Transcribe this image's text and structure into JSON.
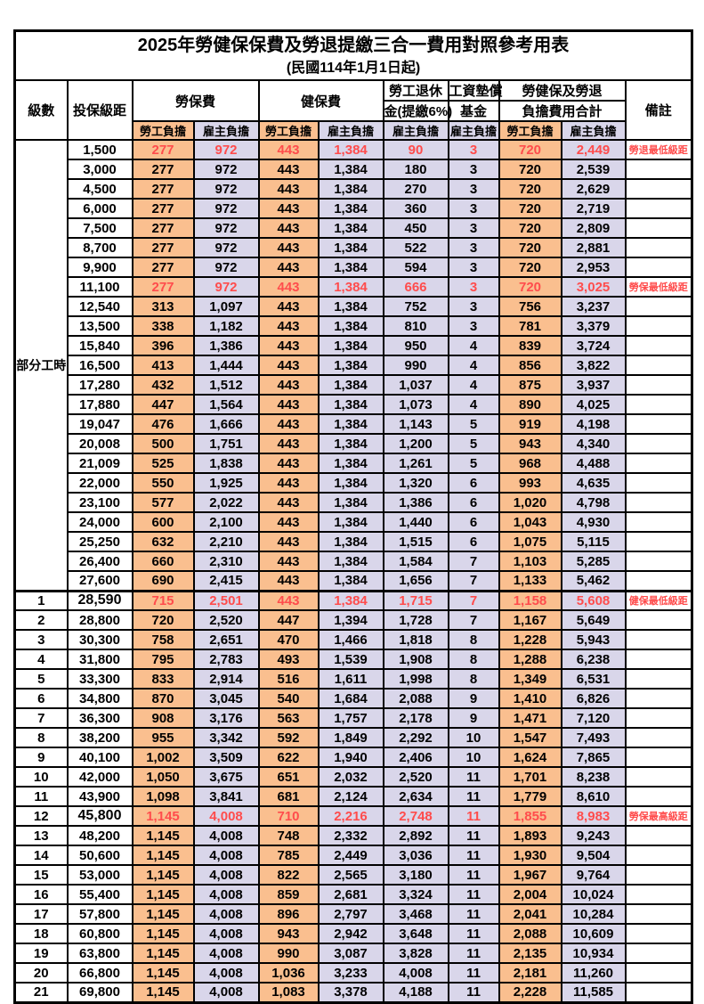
{
  "title": "2025年勞健保保費及勞退提繳三合一費用對照參考用表",
  "subtitle": "(民國114年1月1日起)",
  "part_time_label": "部分工時",
  "colors": {
    "employee_col_bg": "#FABF8F",
    "employer_col_bg": "#D9D6EA",
    "highlight_text": "#FF4C4C",
    "border": "#000000"
  },
  "header": {
    "level": "級數",
    "bracket": "投保級距",
    "labor_insurance": "勞保費",
    "health_insurance": "健保費",
    "pension_line1": "勞工退休",
    "pension_line2": "金(提繳6%)",
    "wage_fund_line1": "工資墊償",
    "wage_fund_line2": "基金",
    "total_line1": "勞健保及勞退",
    "total_line2": "負擔費用合計",
    "remark": "備註",
    "employee": "勞工負擔",
    "employer": "雇主負擔"
  },
  "rows": [
    {
      "red": true,
      "bold": false,
      "thick": false,
      "cells": [
        "",
        "1,500",
        "277",
        "972",
        "443",
        "1,384",
        "90",
        "3",
        "720",
        "2,449",
        "勞退最低級距"
      ]
    },
    {
      "red": false,
      "bold": false,
      "thick": false,
      "cells": [
        "",
        "3,000",
        "277",
        "972",
        "443",
        "1,384",
        "180",
        "3",
        "720",
        "2,539",
        ""
      ]
    },
    {
      "red": false,
      "bold": false,
      "thick": false,
      "cells": [
        "",
        "4,500",
        "277",
        "972",
        "443",
        "1,384",
        "270",
        "3",
        "720",
        "2,629",
        ""
      ]
    },
    {
      "red": false,
      "bold": false,
      "thick": false,
      "cells": [
        "",
        "6,000",
        "277",
        "972",
        "443",
        "1,384",
        "360",
        "3",
        "720",
        "2,719",
        ""
      ]
    },
    {
      "red": false,
      "bold": false,
      "thick": false,
      "cells": [
        "",
        "7,500",
        "277",
        "972",
        "443",
        "1,384",
        "450",
        "3",
        "720",
        "2,809",
        ""
      ]
    },
    {
      "red": false,
      "bold": false,
      "thick": false,
      "cells": [
        "",
        "8,700",
        "277",
        "972",
        "443",
        "1,384",
        "522",
        "3",
        "720",
        "2,881",
        ""
      ]
    },
    {
      "red": false,
      "bold": false,
      "thick": false,
      "cells": [
        "",
        "9,900",
        "277",
        "972",
        "443",
        "1,384",
        "594",
        "3",
        "720",
        "2,953",
        ""
      ]
    },
    {
      "red": true,
      "bold": false,
      "thick": false,
      "cells": [
        "",
        "11,100",
        "277",
        "972",
        "443",
        "1,384",
        "666",
        "3",
        "720",
        "3,025",
        "勞保最低級距"
      ]
    },
    {
      "red": false,
      "bold": false,
      "thick": false,
      "cells": [
        "",
        "12,540",
        "313",
        "1,097",
        "443",
        "1,384",
        "752",
        "3",
        "756",
        "3,237",
        ""
      ]
    },
    {
      "red": false,
      "bold": false,
      "thick": false,
      "cells": [
        "",
        "13,500",
        "338",
        "1,182",
        "443",
        "1,384",
        "810",
        "3",
        "781",
        "3,379",
        ""
      ]
    },
    {
      "red": false,
      "bold": false,
      "thick": false,
      "cells": [
        "",
        "15,840",
        "396",
        "1,386",
        "443",
        "1,384",
        "950",
        "4",
        "839",
        "3,724",
        ""
      ]
    },
    {
      "red": false,
      "bold": false,
      "thick": false,
      "cells": [
        "",
        "16,500",
        "413",
        "1,444",
        "443",
        "1,384",
        "990",
        "4",
        "856",
        "3,822",
        ""
      ]
    },
    {
      "red": false,
      "bold": false,
      "thick": false,
      "cells": [
        "",
        "17,280",
        "432",
        "1,512",
        "443",
        "1,384",
        "1,037",
        "4",
        "875",
        "3,937",
        ""
      ]
    },
    {
      "red": false,
      "bold": false,
      "thick": false,
      "cells": [
        "",
        "17,880",
        "447",
        "1,564",
        "443",
        "1,384",
        "1,073",
        "4",
        "890",
        "4,025",
        ""
      ]
    },
    {
      "red": false,
      "bold": false,
      "thick": false,
      "cells": [
        "",
        "19,047",
        "476",
        "1,666",
        "443",
        "1,384",
        "1,143",
        "5",
        "919",
        "4,198",
        ""
      ]
    },
    {
      "red": false,
      "bold": false,
      "thick": false,
      "cells": [
        "",
        "20,008",
        "500",
        "1,751",
        "443",
        "1,384",
        "1,200",
        "5",
        "943",
        "4,340",
        ""
      ]
    },
    {
      "red": false,
      "bold": false,
      "thick": false,
      "cells": [
        "",
        "21,009",
        "525",
        "1,838",
        "443",
        "1,384",
        "1,261",
        "5",
        "968",
        "4,488",
        ""
      ]
    },
    {
      "red": false,
      "bold": false,
      "thick": false,
      "cells": [
        "",
        "22,000",
        "550",
        "1,925",
        "443",
        "1,384",
        "1,320",
        "6",
        "993",
        "4,635",
        ""
      ]
    },
    {
      "red": false,
      "bold": false,
      "thick": false,
      "cells": [
        "",
        "23,100",
        "577",
        "2,022",
        "443",
        "1,384",
        "1,386",
        "6",
        "1,020",
        "4,798",
        ""
      ]
    },
    {
      "red": false,
      "bold": false,
      "thick": false,
      "cells": [
        "",
        "24,000",
        "600",
        "2,100",
        "443",
        "1,384",
        "1,440",
        "6",
        "1,043",
        "4,930",
        ""
      ]
    },
    {
      "red": false,
      "bold": false,
      "thick": false,
      "cells": [
        "",
        "25,250",
        "632",
        "2,210",
        "443",
        "1,384",
        "1,515",
        "6",
        "1,075",
        "5,115",
        ""
      ]
    },
    {
      "red": false,
      "bold": false,
      "thick": false,
      "cells": [
        "",
        "26,400",
        "660",
        "2,310",
        "443",
        "1,384",
        "1,584",
        "7",
        "1,103",
        "5,285",
        ""
      ]
    },
    {
      "red": false,
      "bold": false,
      "thick": false,
      "cells": [
        "",
        "27,600",
        "690",
        "2,415",
        "443",
        "1,384",
        "1,656",
        "7",
        "1,133",
        "5,462",
        ""
      ]
    },
    {
      "red": true,
      "bold": true,
      "thick": true,
      "cells": [
        "1",
        "28,590",
        "715",
        "2,501",
        "443",
        "1,384",
        "1,715",
        "7",
        "1,158",
        "5,608",
        "健保最低級距"
      ]
    },
    {
      "red": false,
      "bold": false,
      "thick": false,
      "cells": [
        "2",
        "28,800",
        "720",
        "2,520",
        "447",
        "1,394",
        "1,728",
        "7",
        "1,167",
        "5,649",
        ""
      ]
    },
    {
      "red": false,
      "bold": false,
      "thick": false,
      "cells": [
        "3",
        "30,300",
        "758",
        "2,651",
        "470",
        "1,466",
        "1,818",
        "8",
        "1,228",
        "5,943",
        ""
      ]
    },
    {
      "red": false,
      "bold": false,
      "thick": false,
      "cells": [
        "4",
        "31,800",
        "795",
        "2,783",
        "493",
        "1,539",
        "1,908",
        "8",
        "1,288",
        "6,238",
        ""
      ]
    },
    {
      "red": false,
      "bold": false,
      "thick": false,
      "cells": [
        "5",
        "33,300",
        "833",
        "2,914",
        "516",
        "1,611",
        "1,998",
        "8",
        "1,349",
        "6,531",
        ""
      ]
    },
    {
      "red": false,
      "bold": false,
      "thick": false,
      "cells": [
        "6",
        "34,800",
        "870",
        "3,045",
        "540",
        "1,684",
        "2,088",
        "9",
        "1,410",
        "6,826",
        ""
      ]
    },
    {
      "red": false,
      "bold": false,
      "thick": false,
      "cells": [
        "7",
        "36,300",
        "908",
        "3,176",
        "563",
        "1,757",
        "2,178",
        "9",
        "1,471",
        "7,120",
        ""
      ]
    },
    {
      "red": false,
      "bold": false,
      "thick": false,
      "cells": [
        "8",
        "38,200",
        "955",
        "3,342",
        "592",
        "1,849",
        "2,292",
        "10",
        "1,547",
        "7,493",
        ""
      ]
    },
    {
      "red": false,
      "bold": false,
      "thick": false,
      "cells": [
        "9",
        "40,100",
        "1,002",
        "3,509",
        "622",
        "1,940",
        "2,406",
        "10",
        "1,624",
        "7,865",
        ""
      ]
    },
    {
      "red": false,
      "bold": false,
      "thick": false,
      "cells": [
        "10",
        "42,000",
        "1,050",
        "3,675",
        "651",
        "2,032",
        "2,520",
        "11",
        "1,701",
        "8,238",
        ""
      ]
    },
    {
      "red": false,
      "bold": false,
      "thick": false,
      "cells": [
        "11",
        "43,900",
        "1,098",
        "3,841",
        "681",
        "2,124",
        "2,634",
        "11",
        "1,779",
        "8,610",
        ""
      ]
    },
    {
      "red": true,
      "bold": true,
      "thick": false,
      "cells": [
        "12",
        "45,800",
        "1,145",
        "4,008",
        "710",
        "2,216",
        "2,748",
        "11",
        "1,855",
        "8,983",
        "勞保最高級距"
      ]
    },
    {
      "red": false,
      "bold": false,
      "thick": false,
      "cells": [
        "13",
        "48,200",
        "1,145",
        "4,008",
        "748",
        "2,332",
        "2,892",
        "11",
        "1,893",
        "9,243",
        ""
      ]
    },
    {
      "red": false,
      "bold": false,
      "thick": false,
      "cells": [
        "14",
        "50,600",
        "1,145",
        "4,008",
        "785",
        "2,449",
        "3,036",
        "11",
        "1,930",
        "9,504",
        ""
      ]
    },
    {
      "red": false,
      "bold": false,
      "thick": false,
      "cells": [
        "15",
        "53,000",
        "1,145",
        "4,008",
        "822",
        "2,565",
        "3,180",
        "11",
        "1,967",
        "9,764",
        ""
      ]
    },
    {
      "red": false,
      "bold": false,
      "thick": false,
      "cells": [
        "16",
        "55,400",
        "1,145",
        "4,008",
        "859",
        "2,681",
        "3,324",
        "11",
        "2,004",
        "10,024",
        ""
      ]
    },
    {
      "red": false,
      "bold": false,
      "thick": false,
      "cells": [
        "17",
        "57,800",
        "1,145",
        "4,008",
        "896",
        "2,797",
        "3,468",
        "11",
        "2,041",
        "10,284",
        ""
      ]
    },
    {
      "red": false,
      "bold": false,
      "thick": false,
      "cells": [
        "18",
        "60,800",
        "1,145",
        "4,008",
        "943",
        "2,942",
        "3,648",
        "11",
        "2,088",
        "10,609",
        ""
      ]
    },
    {
      "red": false,
      "bold": false,
      "thick": false,
      "cells": [
        "19",
        "63,800",
        "1,145",
        "4,008",
        "990",
        "3,087",
        "3,828",
        "11",
        "2,135",
        "10,934",
        ""
      ]
    },
    {
      "red": false,
      "bold": false,
      "thick": false,
      "cells": [
        "20",
        "66,800",
        "1,145",
        "4,008",
        "1,036",
        "3,233",
        "4,008",
        "11",
        "2,181",
        "11,260",
        ""
      ]
    },
    {
      "red": false,
      "bold": false,
      "thick": false,
      "cells": [
        "21",
        "69,800",
        "1,145",
        "4,008",
        "1,083",
        "3,378",
        "4,188",
        "11",
        "2,228",
        "11,585",
        ""
      ]
    }
  ]
}
